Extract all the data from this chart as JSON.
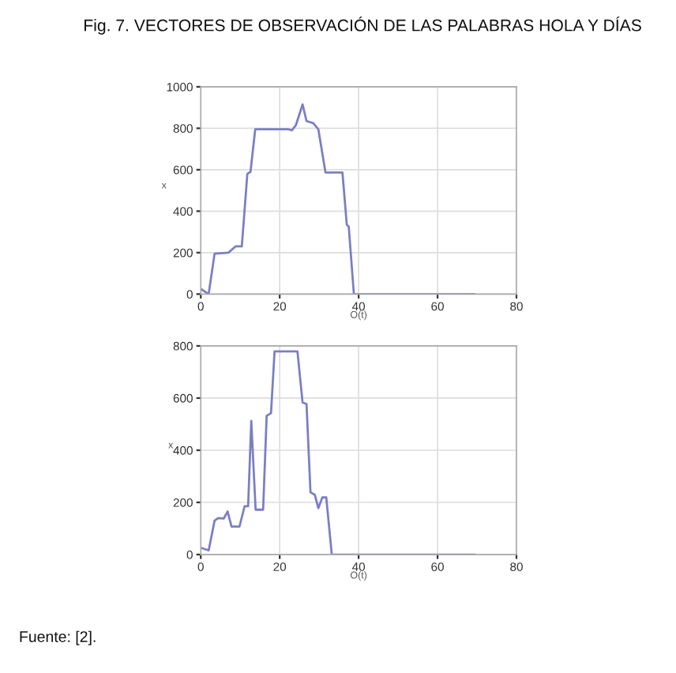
{
  "chart_data": [
    {
      "type": "line",
      "title": "Fig. 7. VECTORES DE OBSERVACIÓN DE LAS PALABRAS HOLA Y DÍAS",
      "xlabel": "O(t)",
      "ylabel": "x",
      "series": [
        {
          "color": "#7b7fc4",
          "x": [
            0,
            2,
            3.5,
            7,
            8.8,
            10.4,
            11.8,
            12.6,
            13.8,
            22.2,
            23.1,
            24.1,
            25.8,
            26.8,
            28.5,
            29.8,
            31.6,
            35.9,
            37,
            37.5,
            38.8,
            69.3
          ],
          "values": [
            25,
            0,
            195,
            200,
            230,
            230,
            580,
            590,
            795,
            795,
            790,
            815,
            915,
            835,
            825,
            795,
            587,
            587,
            335,
            325,
            0,
            0
          ]
        }
      ],
      "xlim": [
        0,
        80
      ],
      "xticks": [
        0,
        20,
        40,
        60,
        80
      ],
      "ylim": [
        0,
        1000
      ],
      "yticks": [
        0,
        200,
        400,
        600,
        800,
        1000
      ],
      "grid": true,
      "line_style": "solid"
    },
    {
      "type": "line",
      "xlabel": "O(t)",
      "ylabel": "x",
      "annotations": [
        "Fuente: [2]."
      ],
      "series": [
        {
          "color": "#7b7fc4",
          "x": [
            0,
            2,
            3.5,
            4.4,
            5.8,
            6.8,
            7.8,
            9.8,
            11.1,
            12,
            12.8,
            13.9,
            15.8,
            16.7,
            17.8,
            18.7,
            24.5,
            25.8,
            26.8,
            27.8,
            28.9,
            29.8,
            30.8,
            31.8,
            33.2,
            69.3
          ],
          "values": [
            26,
            16,
            130,
            140,
            138,
            165,
            107,
            107,
            185,
            185,
            512,
            172,
            172,
            532,
            542,
            779,
            779,
            583,
            577,
            239,
            229,
            178,
            219,
            219,
            0,
            0
          ]
        }
      ],
      "xlim": [
        0,
        80
      ],
      "xticks": [
        0,
        20,
        40,
        60,
        80
      ],
      "ylim": [
        0,
        800
      ],
      "yticks": [
        0,
        200,
        400,
        600,
        800
      ],
      "grid": true,
      "line_style": "solid"
    }
  ]
}
